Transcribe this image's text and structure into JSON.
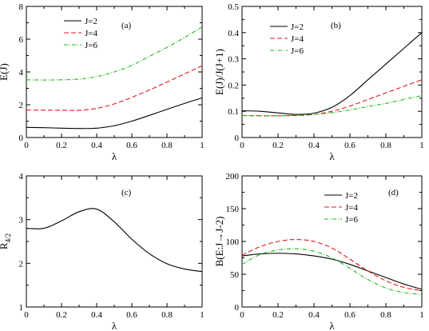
{
  "chart_data": [
    {
      "type": "line",
      "panel_tag": "(a)",
      "xlabel": "λ",
      "ylabel": "E(J)",
      "xlim": [
        0,
        1
      ],
      "ylim": [
        0,
        8
      ],
      "xticks": [
        0,
        0.2,
        0.4,
        0.6,
        0.8,
        1
      ],
      "xtick_labels": [
        "0",
        "0.2",
        "0.4",
        "0.6",
        "0.8",
        "1"
      ],
      "yticks": [
        0,
        2,
        4,
        6,
        8
      ],
      "ytick_labels": [
        "0",
        "2",
        "4",
        "6",
        "8"
      ],
      "legend_position": "top-center",
      "x": [
        0,
        0.1,
        0.2,
        0.3,
        0.4,
        0.5,
        0.6,
        0.7,
        0.8,
        0.9,
        1.0
      ],
      "series": [
        {
          "name": "J=2",
          "color": "#000000",
          "dash": "solid",
          "values": [
            0.62,
            0.6,
            0.57,
            0.55,
            0.57,
            0.72,
            1.0,
            1.35,
            1.72,
            2.08,
            2.42
          ]
        },
        {
          "name": "J=4",
          "color": "#e41a1c",
          "dash": "dashed",
          "values": [
            1.68,
            1.67,
            1.66,
            1.66,
            1.78,
            2.05,
            2.45,
            2.9,
            3.38,
            3.88,
            4.38
          ]
        },
        {
          "name": "J=6",
          "color": "#22b522",
          "dash": "dashdot",
          "values": [
            3.52,
            3.51,
            3.52,
            3.56,
            3.72,
            4.0,
            4.4,
            4.95,
            5.5,
            6.1,
            6.75
          ]
        }
      ]
    },
    {
      "type": "line",
      "panel_tag": "(b)",
      "xlabel": "λ",
      "ylabel": "E(J)/J(J+1)",
      "xlim": [
        0,
        1
      ],
      "ylim": [
        0,
        0.5
      ],
      "xticks": [
        0,
        0.2,
        0.4,
        0.6,
        0.8,
        1
      ],
      "xtick_labels": [
        "0",
        "0.2",
        "0.4",
        "0.6",
        "0.8",
        "1"
      ],
      "yticks": [
        0,
        0.1,
        0.2,
        0.3,
        0.4,
        0.5
      ],
      "ytick_labels": [
        "0",
        "0.1",
        "0.2",
        "0.3",
        "0.4",
        "0.5"
      ],
      "legend_position": "top-left",
      "x": [
        0,
        0.1,
        0.2,
        0.3,
        0.4,
        0.5,
        0.6,
        0.7,
        0.8,
        0.9,
        1.0
      ],
      "series": [
        {
          "name": "J=2",
          "color": "#000000",
          "dash": "solid",
          "values": [
            0.102,
            0.1,
            0.094,
            0.088,
            0.093,
            0.115,
            0.16,
            0.22,
            0.28,
            0.34,
            0.4
          ]
        },
        {
          "name": "J=4",
          "color": "#e41a1c",
          "dash": "dashed",
          "values": [
            0.084,
            0.083,
            0.083,
            0.084,
            0.088,
            0.1,
            0.12,
            0.145,
            0.17,
            0.195,
            0.22
          ]
        },
        {
          "name": "J=6",
          "color": "#22b522",
          "dash": "dashdot",
          "values": [
            0.084,
            0.083,
            0.083,
            0.085,
            0.088,
            0.095,
            0.105,
            0.118,
            0.13,
            0.145,
            0.16
          ]
        }
      ]
    },
    {
      "type": "line",
      "panel_tag": "(c)",
      "xlabel": "λ",
      "ylabel": "R_{4/2}",
      "ylabel_main": "R",
      "ylabel_sub": "4/2",
      "xlim": [
        0,
        1
      ],
      "ylim": [
        1,
        4
      ],
      "xticks": [
        0,
        0.2,
        0.4,
        0.6,
        0.8,
        1
      ],
      "xtick_labels": [
        "0",
        "0.2",
        "0.4",
        "0.6",
        "0.8",
        "1"
      ],
      "yticks": [
        1,
        2,
        3,
        4
      ],
      "ytick_labels": [
        "1",
        "2",
        "3",
        "4"
      ],
      "x": [
        0,
        0.1,
        0.2,
        0.3,
        0.4,
        0.5,
        0.6,
        0.7,
        0.8,
        0.9,
        1.0
      ],
      "series": [
        {
          "color": "#000000",
          "dash": "solid",
          "values": [
            2.8,
            2.8,
            2.97,
            3.18,
            3.24,
            2.95,
            2.55,
            2.22,
            1.99,
            1.87,
            1.81
          ]
        }
      ]
    },
    {
      "type": "line",
      "panel_tag": "(d)",
      "xlabel": "λ",
      "ylabel": "B(E:J→J-2)",
      "xlim": [
        0,
        1
      ],
      "ylim": [
        0,
        200
      ],
      "xticks": [
        0,
        0.2,
        0.4,
        0.6,
        0.8,
        1
      ],
      "xtick_labels": [
        "0",
        "0.2",
        "0.4",
        "0.6",
        "0.8",
        "1"
      ],
      "yticks": [
        0,
        50,
        100,
        150,
        200
      ],
      "ytick_labels": [
        "0",
        "50",
        "100",
        "150",
        "200"
      ],
      "legend_position": "top-right",
      "x": [
        0,
        0.1,
        0.2,
        0.3,
        0.4,
        0.5,
        0.6,
        0.7,
        0.8,
        0.9,
        1.0
      ],
      "series": [
        {
          "name": "J=2",
          "color": "#000000",
          "dash": "solid",
          "values": [
            78,
            81,
            82,
            81,
            78,
            73,
            65,
            55,
            45,
            35,
            27
          ]
        },
        {
          "name": "J=4",
          "color": "#e41a1c",
          "dash": "dashed",
          "values": [
            79,
            92,
            100,
            103,
            100,
            90,
            73,
            55,
            40,
            30,
            25
          ]
        },
        {
          "name": "J=6",
          "color": "#22b522",
          "dash": "dashdot",
          "values": [
            65,
            80,
            87,
            89,
            85,
            75,
            59,
            42,
            29,
            22,
            19
          ]
        }
      ]
    }
  ]
}
